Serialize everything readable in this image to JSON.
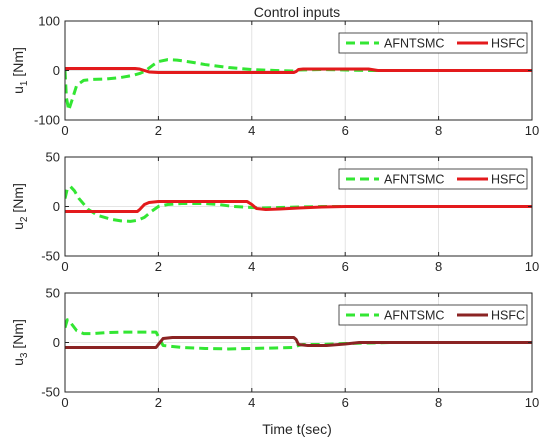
{
  "figure": {
    "title": "Control inputs",
    "xlabel": "Time t(sec)"
  },
  "colors": {
    "afntsmc": "#33e633",
    "hsfc": "#e31a1c",
    "hsfc_dark": "#8b2323",
    "grid": "#dcdcdc",
    "axis": "#262626"
  },
  "chart_data": [
    {
      "type": "line",
      "ylabel_main": "u",
      "ylabel_sub": "1",
      "ylabel_unit": " [Nm]",
      "xlim": [
        0,
        10
      ],
      "ylim": [
        -100,
        100
      ],
      "xticks": [
        0,
        2,
        4,
        6,
        8,
        10
      ],
      "yticks": [
        -100,
        0,
        100
      ],
      "grid": true,
      "legend": "top-right",
      "series": [
        {
          "name": "AFNTSMC",
          "style": "dashed",
          "x": [
            0,
            0.03,
            0.08,
            0.15,
            0.25,
            0.4,
            0.6,
            0.9,
            1.2,
            1.45,
            1.6,
            1.7,
            1.8,
            1.9,
            2.0,
            2.2,
            2.4,
            2.7,
            3.0,
            3.5,
            4.0,
            4.5,
            4.9,
            5.0,
            5.5,
            6.0,
            6.5,
            7.0,
            8.0,
            9.0,
            10.0
          ],
          "y": [
            0,
            -55,
            -80,
            -60,
            -30,
            -20,
            -18,
            -17,
            -14,
            -10,
            -6,
            -2,
            5,
            12,
            18,
            22,
            21,
            17,
            12,
            6,
            2,
            0,
            -1,
            1,
            2,
            1,
            0,
            0,
            0,
            0,
            0
          ]
        },
        {
          "name": "HSFC",
          "style": "solid",
          "x": [
            0,
            1.5,
            1.6,
            1.7,
            1.8,
            2.0,
            3.0,
            4.0,
            4.9,
            4.95,
            5.0,
            5.1,
            6.0,
            6.5,
            6.7,
            8.0,
            10.0
          ],
          "y": [
            4,
            4,
            3,
            0,
            -3,
            -4,
            -4,
            -4,
            -4,
            -2,
            2,
            3,
            3,
            3,
            0,
            0,
            0
          ]
        }
      ]
    },
    {
      "type": "line",
      "ylabel_main": "u",
      "ylabel_sub": "2",
      "ylabel_unit": " [Nm]",
      "xlim": [
        0,
        10
      ],
      "ylim": [
        -50,
        50
      ],
      "xticks": [
        0,
        2,
        4,
        6,
        8,
        10
      ],
      "yticks": [
        -50,
        0,
        50
      ],
      "grid": true,
      "legend": "top-right",
      "series": [
        {
          "name": "AFNTSMC",
          "style": "dashed",
          "x": [
            0,
            0.05,
            0.12,
            0.2,
            0.3,
            0.5,
            0.7,
            1.0,
            1.2,
            1.4,
            1.55,
            1.7,
            1.85,
            2.0,
            2.2,
            2.5,
            3.0,
            3.3,
            3.6,
            4.0,
            4.2,
            4.6,
            5.0,
            5.5,
            6.0,
            7.0,
            8.0,
            10.0
          ],
          "y": [
            8,
            18,
            20,
            16,
            8,
            -3,
            -9,
            -13,
            -14.5,
            -15,
            -14,
            -11,
            -5,
            0,
            2,
            3,
            3,
            2,
            0,
            -1,
            -1.5,
            -1,
            -0.5,
            0,
            0,
            0,
            0,
            0
          ]
        },
        {
          "name": "HSFC",
          "style": "solid",
          "x": [
            0,
            1.55,
            1.6,
            1.7,
            1.8,
            2.0,
            3.0,
            3.9,
            4.0,
            4.1,
            4.3,
            4.6,
            5.0,
            5.5,
            6.0,
            8.0,
            10.0
          ],
          "y": [
            -5,
            -5,
            -3,
            2,
            4,
            5,
            5,
            5,
            2,
            -2,
            -3,
            -2.5,
            -1.5,
            -0.5,
            0,
            0,
            0
          ]
        }
      ]
    },
    {
      "type": "line",
      "ylabel_main": "u",
      "ylabel_sub": "3",
      "ylabel_unit": " [Nm]",
      "xlim": [
        0,
        10
      ],
      "ylim": [
        -50,
        50
      ],
      "xticks": [
        0,
        2,
        4,
        6,
        8,
        10
      ],
      "yticks": [
        -50,
        0,
        50
      ],
      "grid": true,
      "legend": "top-right",
      "series": [
        {
          "name": "AFNTSMC",
          "style": "dashed",
          "x": [
            0,
            0.05,
            0.12,
            0.25,
            0.4,
            0.6,
            0.9,
            1.2,
            1.5,
            1.8,
            1.95,
            2.0,
            2.1,
            2.5,
            3.0,
            3.5,
            4.0,
            4.5,
            4.9,
            5.0,
            5.1,
            5.5,
            6.0,
            6.5,
            7.0,
            8.0,
            10.0
          ],
          "y": [
            15,
            23,
            20,
            12,
            9,
            9,
            10,
            10.5,
            10.5,
            10.5,
            10.5,
            6,
            -3,
            -5,
            -6,
            -6.5,
            -6,
            -5.5,
            -5,
            -3,
            -2,
            -2,
            -1,
            -0.5,
            0,
            0,
            0
          ]
        },
        {
          "name": "HSFC",
          "style": "solid",
          "x": [
            0,
            1.95,
            2.0,
            2.1,
            2.3,
            3.0,
            4.0,
            4.9,
            4.95,
            5.0,
            5.2,
            5.6,
            6.0,
            6.3,
            7.0,
            8.0,
            10.0
          ],
          "y": [
            -5,
            -5,
            -2,
            4,
            5,
            5,
            5,
            5,
            3,
            -2,
            -3,
            -3,
            -1.5,
            0,
            0,
            0,
            0
          ]
        }
      ]
    }
  ]
}
